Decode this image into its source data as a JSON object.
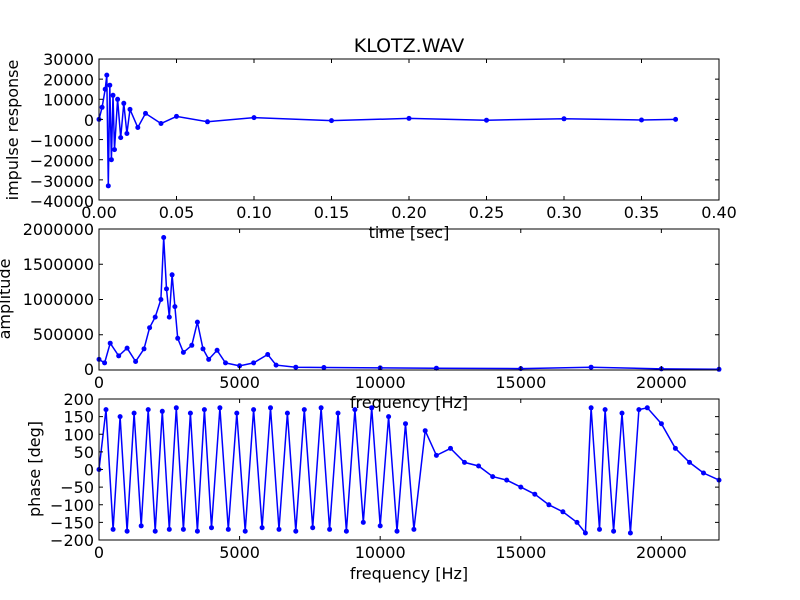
{
  "chart_data": [
    {
      "type": "line",
      "title": "KLOTZ.WAV",
      "xlabel": "time [sec]",
      "ylabel": "impulse response",
      "xlim": [
        0,
        0.4
      ],
      "ylim": [
        -40000,
        30000
      ],
      "xticks": [
        "0.00",
        "0.05",
        "0.10",
        "0.15",
        "0.20",
        "0.25",
        "0.30",
        "0.35",
        "0.40"
      ],
      "yticks": [
        "30000",
        "20000",
        "10000",
        "0",
        "−10000",
        "−20000",
        "−30000",
        "−40000"
      ],
      "marker": "dot",
      "grid": false,
      "series": [
        {
          "x": [
            0.0,
            0.002,
            0.004,
            0.005,
            0.006,
            0.007,
            0.008,
            0.009,
            0.01,
            0.012,
            0.014,
            0.016,
            0.018,
            0.02,
            0.025,
            0.03,
            0.04,
            0.05,
            0.07,
            0.1,
            0.15,
            0.2,
            0.25,
            0.3,
            0.35,
            0.372
          ],
          "y": [
            0,
            6000,
            15000,
            22000,
            -33000,
            17000,
            -20000,
            12000,
            -15000,
            10000,
            -9000,
            8000,
            -7000,
            5000,
            -4000,
            3000,
            -2000,
            1500,
            -1200,
            900,
            -600,
            500,
            -400,
            300,
            -300,
            0
          ]
        }
      ]
    },
    {
      "type": "line",
      "xlabel": "frequency [Hz]",
      "ylabel": "amplitude",
      "xlim": [
        0,
        22050
      ],
      "ylim": [
        0,
        2000000
      ],
      "xticks": [
        "0",
        "5000",
        "10000",
        "15000",
        "20000"
      ],
      "yticks": [
        "2000000",
        "1500000",
        "1000000",
        "500000",
        "0"
      ],
      "marker": "dot",
      "grid": false,
      "series": [
        {
          "x": [
            0,
            200,
            400,
            700,
            1000,
            1300,
            1600,
            1800,
            2000,
            2200,
            2300,
            2400,
            2500,
            2600,
            2700,
            2800,
            3000,
            3300,
            3500,
            3700,
            3900,
            4200,
            4500,
            5000,
            5500,
            6000,
            6300,
            7000,
            8000,
            10000,
            12000,
            15000,
            17500,
            20000,
            22050
          ],
          "y": [
            150000,
            100000,
            380000,
            200000,
            310000,
            120000,
            300000,
            600000,
            750000,
            1000000,
            1880000,
            1150000,
            750000,
            1350000,
            900000,
            450000,
            250000,
            350000,
            680000,
            300000,
            150000,
            280000,
            100000,
            60000,
            100000,
            220000,
            70000,
            40000,
            35000,
            30000,
            25000,
            20000,
            40000,
            15000,
            10000
          ]
        }
      ]
    },
    {
      "type": "line",
      "xlabel": "frequency [Hz]",
      "ylabel": "phase [deg]",
      "xlim": [
        0,
        22050
      ],
      "ylim": [
        -200,
        200
      ],
      "xticks": [
        "0",
        "5000",
        "10000",
        "15000",
        "20000"
      ],
      "yticks": [
        "200",
        "150",
        "100",
        "50",
        "0",
        "−50",
        "−100",
        "−150",
        "−200"
      ],
      "marker": "dot",
      "grid": false,
      "series": [
        {
          "x": [
            0,
            250,
            500,
            750,
            1000,
            1250,
            1500,
            1750,
            2000,
            2250,
            2500,
            2750,
            3000,
            3250,
            3500,
            3750,
            4000,
            4300,
            4600,
            4900,
            5200,
            5500,
            5800,
            6100,
            6400,
            6700,
            7000,
            7300,
            7600,
            7900,
            8200,
            8500,
            8800,
            9100,
            9400,
            9700,
            10000,
            10300,
            10600,
            10900,
            11200,
            11600,
            12000,
            12500,
            13000,
            13500,
            14000,
            14500,
            15000,
            15500,
            16000,
            16500,
            17000,
            17300,
            17500,
            17800,
            18000,
            18300,
            18600,
            18900,
            19200,
            19500,
            20000,
            20500,
            21000,
            21500,
            22050
          ],
          "y": [
            0,
            170,
            -170,
            150,
            -175,
            160,
            -160,
            170,
            -175,
            165,
            -170,
            175,
            -170,
            160,
            -175,
            170,
            -165,
            175,
            -170,
            160,
            -175,
            170,
            -165,
            175,
            -170,
            160,
            -175,
            170,
            -165,
            175,
            -170,
            160,
            -175,
            170,
            -150,
            175,
            -160,
            150,
            -175,
            130,
            -170,
            110,
            40,
            60,
            20,
            10,
            -20,
            -30,
            -50,
            -70,
            -100,
            -120,
            -150,
            -180,
            175,
            -170,
            170,
            -175,
            160,
            -180,
            170,
            175,
            130,
            60,
            20,
            -10,
            -30
          ]
        }
      ]
    }
  ]
}
